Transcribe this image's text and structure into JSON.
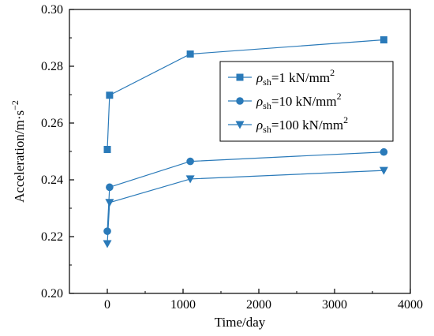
{
  "chart_data": {
    "type": "line",
    "xlabel": "Time/day",
    "ylabel": "Acceleration/m·s",
    "ylabel_sup": "−2",
    "xlim": [
      -500,
      4000
    ],
    "ylim": [
      0.2,
      0.3
    ],
    "x_ticks": [
      0,
      1000,
      2000,
      3000,
      4000
    ],
    "x_tick_labels": [
      "0",
      "1000",
      "2000",
      "3000",
      "4000"
    ],
    "y_ticks": [
      0.2,
      0.22,
      0.24,
      0.26,
      0.28,
      0.3
    ],
    "y_tick_labels": [
      "0.20",
      "0.22",
      "0.24",
      "0.26",
      "0.28",
      "0.30"
    ],
    "grid": false,
    "legend_position": "top-right",
    "color": "#2a7ab9",
    "series": [
      {
        "name_symbol": "ρ",
        "name_sub": "sh",
        "name_rest": "=1 kN/mm",
        "name_sup": "2",
        "marker": "square",
        "x": [
          0,
          30,
          1095,
          3650
        ],
        "y": [
          0.2507,
          0.2698,
          0.2843,
          0.2893
        ]
      },
      {
        "name_symbol": "ρ",
        "name_sub": "sh",
        "name_rest": "=10 kN/mm",
        "name_sup": "2",
        "marker": "circle",
        "x": [
          0,
          30,
          1095,
          3650
        ],
        "y": [
          0.2219,
          0.2374,
          0.2465,
          0.2498
        ]
      },
      {
        "name_symbol": "ρ",
        "name_sub": "sh",
        "name_rest": "=100 kN/mm",
        "name_sup": "2",
        "marker": "triangle-down",
        "x": [
          0,
          30,
          1095,
          3650
        ],
        "y": [
          0.2175,
          0.232,
          0.2403,
          0.2433
        ]
      }
    ]
  }
}
